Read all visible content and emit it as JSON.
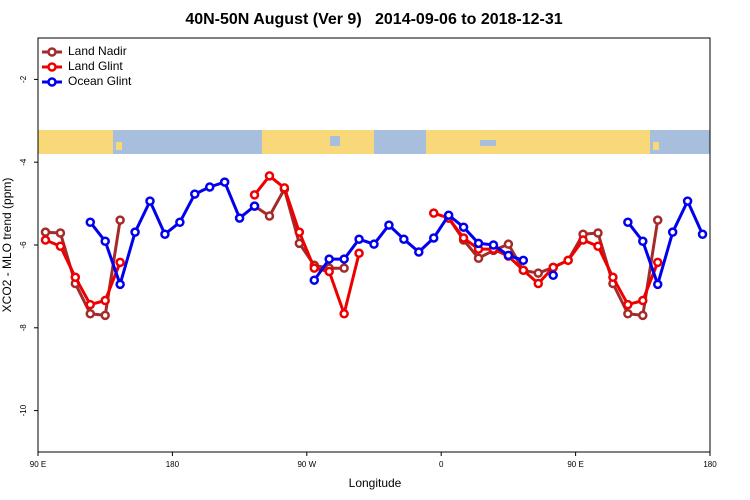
{
  "chart_data": {
    "type": "line",
    "title": "40N-50N August (Ver 9)   2014-09-06 to 2018-12-31",
    "xlabel": "Longitude",
    "ylabel": "XCO2 - MLO trend (ppm)",
    "x": [
      95,
      105,
      115,
      125,
      135,
      145,
      155,
      165,
      175,
      185,
      195,
      205,
      215,
      225,
      235,
      245,
      255,
      265,
      275,
      285,
      295,
      305,
      315,
      325,
      335,
      345,
      355,
      365,
      375,
      385,
      395,
      405,
      415,
      425,
      435,
      445,
      455,
      465,
      475,
      485,
      495,
      505,
      515,
      525,
      535
    ],
    "series": [
      {
        "name": "Land Nadir",
        "color": "#a52a2a",
        "values": [
          -5.69,
          -5.71,
          -6.93,
          -7.66,
          -7.7,
          -5.4,
          null,
          null,
          null,
          null,
          null,
          null,
          null,
          null,
          -5.06,
          -5.3,
          -4.65,
          -5.96,
          -6.49,
          -6.56,
          -6.56,
          null,
          null,
          null,
          null,
          null,
          null,
          -5.35,
          -5.88,
          -6.32,
          -6.13,
          -5.98,
          -6.61,
          -6.68,
          -6.54,
          -6.37,
          -5.74,
          -5.71,
          -6.93,
          -7.66,
          -7.7,
          -5.4,
          null,
          null,
          null
        ]
      },
      {
        "name": "Land Glint",
        "color": "#ee0000",
        "values": [
          -5.88,
          -6.03,
          -6.78,
          -7.44,
          -7.34,
          -6.42,
          null,
          null,
          null,
          null,
          null,
          null,
          null,
          null,
          -4.79,
          -4.33,
          -4.62,
          -5.69,
          -6.56,
          -6.64,
          -7.66,
          -6.2,
          null,
          null,
          null,
          null,
          -5.23,
          -5.35,
          -5.83,
          -6.1,
          -6.1,
          -6.27,
          -6.61,
          -6.93,
          -6.54,
          -6.37,
          -5.88,
          -6.03,
          -6.78,
          -7.44,
          -7.34,
          -6.42,
          null,
          null,
          null
        ]
      },
      {
        "name": "Ocean Glint",
        "color": "#0000ee",
        "values": [
          null,
          null,
          null,
          -5.45,
          -5.91,
          -6.95,
          -5.69,
          -4.94,
          -5.74,
          -5.45,
          -4.77,
          -4.6,
          -4.48,
          -5.35,
          -5.06,
          null,
          null,
          null,
          -6.85,
          -6.34,
          -6.34,
          -5.86,
          -5.98,
          -5.52,
          -5.86,
          -6.17,
          -5.83,
          -5.28,
          -5.57,
          -5.96,
          -6.0,
          -6.25,
          -6.37,
          null,
          -6.73,
          null,
          null,
          null,
          null,
          -5.45,
          -5.91,
          -6.95,
          -5.69,
          -4.94,
          -5.74
        ]
      }
    ],
    "xlim": [
      90,
      540
    ],
    "xticks": [
      {
        "value": 90,
        "label": "90 E"
      },
      180,
      {
        "value": 270,
        "label": "90 W"
      },
      {
        "value": 360,
        "label": "0"
      },
      {
        "value": 450,
        "label": "90 E"
      },
      {
        "value": 540,
        "label": "180"
      }
    ],
    "ylim": [
      -11,
      -1
    ],
    "yticks": [
      -2,
      -4,
      -6,
      -8,
      -10
    ],
    "legend": "upper left"
  }
}
